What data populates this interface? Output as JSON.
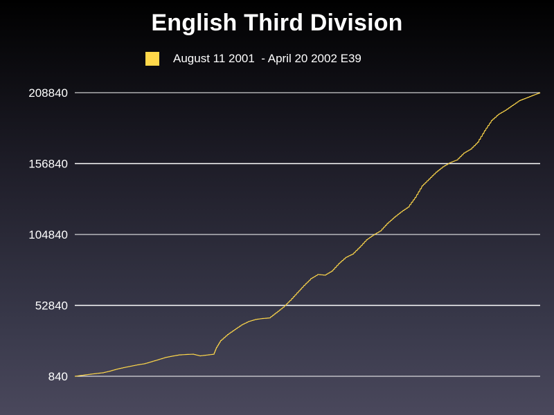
{
  "chart_data": {
    "type": "line",
    "title": "English Third Division",
    "xlabel": "",
    "ylabel": "",
    "yticks": [
      840,
      52840,
      104840,
      156840,
      208840
    ],
    "ylim": [
      840,
      208840
    ],
    "grid": true,
    "legend_position": "top",
    "series": [
      {
        "name": "August 11 2001  - April 20 2002 E39",
        "color": "#ffd84a",
        "points": [
          [
            0,
            840
          ],
          [
            5,
            1500
          ],
          [
            10,
            2200
          ],
          [
            15,
            2800
          ],
          [
            20,
            3400
          ],
          [
            25,
            4600
          ],
          [
            30,
            6000
          ],
          [
            35,
            7200
          ],
          [
            40,
            8200
          ],
          [
            45,
            9200
          ],
          [
            50,
            10000
          ],
          [
            55,
            11500
          ],
          [
            60,
            13000
          ],
          [
            65,
            14600
          ],
          [
            70,
            15600
          ],
          [
            75,
            16500
          ],
          [
            80,
            16800
          ],
          [
            85,
            17000
          ],
          [
            90,
            15800
          ],
          [
            95,
            16400
          ],
          [
            100,
            17000
          ],
          [
            102,
            22000
          ],
          [
            105,
            27000
          ],
          [
            110,
            31500
          ],
          [
            115,
            35000
          ],
          [
            120,
            38500
          ],
          [
            125,
            41000
          ],
          [
            130,
            42500
          ],
          [
            135,
            43200
          ],
          [
            140,
            43600
          ],
          [
            145,
            47500
          ],
          [
            150,
            51500
          ],
          [
            155,
            56500
          ],
          [
            160,
            62000
          ],
          [
            165,
            67500
          ],
          [
            170,
            72500
          ],
          [
            175,
            75500
          ],
          [
            180,
            75000
          ],
          [
            185,
            78000
          ],
          [
            190,
            83500
          ],
          [
            195,
            88000
          ],
          [
            200,
            90500
          ],
          [
            205,
            95500
          ],
          [
            210,
            101000
          ],
          [
            215,
            104500
          ],
          [
            220,
            107500
          ],
          [
            225,
            113000
          ],
          [
            230,
            117500
          ],
          [
            235,
            121500
          ],
          [
            240,
            125000
          ],
          [
            245,
            132000
          ],
          [
            250,
            140500
          ],
          [
            255,
            145500
          ],
          [
            260,
            150500
          ],
          [
            265,
            154500
          ],
          [
            270,
            157500
          ],
          [
            275,
            159500
          ],
          [
            280,
            164500
          ],
          [
            285,
            167500
          ],
          [
            290,
            172500
          ],
          [
            295,
            181000
          ],
          [
            300,
            188500
          ],
          [
            305,
            193000
          ],
          [
            310,
            196000
          ],
          [
            315,
            199500
          ],
          [
            320,
            203000
          ],
          [
            325,
            205000
          ],
          [
            330,
            207000
          ],
          [
            335,
            208840
          ]
        ]
      }
    ]
  },
  "colors": {
    "line": "#ffd84a",
    "grid": "#ffffff",
    "background_top": "#000000",
    "background_bottom": "#4a485c"
  }
}
